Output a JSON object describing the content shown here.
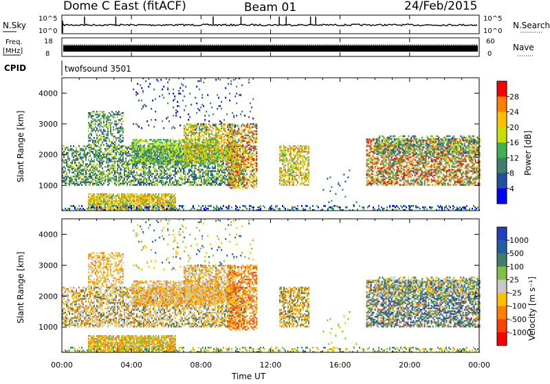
{
  "header": {
    "station": "Dome C East (fitACF)",
    "beam": "Beam 01",
    "date": "24/Feb/2015"
  },
  "strips": {
    "nsky_label": "N.Sky",
    "nsky_ticks": [
      "10^5",
      "10^0"
    ],
    "nsearch_label": "N.Search",
    "nsearch_ticks": [
      "10^5",
      "10^0"
    ],
    "freq_label": "Freq.",
    "freq_unit": "[MHz]",
    "freq_ticks": [
      "18",
      "8"
    ],
    "nave_label": "Nave",
    "nave_ticks": [
      "60",
      "0"
    ],
    "cpid_label": "CPID",
    "cpid_name": "twofsound 3501"
  },
  "chart_data": [
    {
      "type": "heatmap",
      "name": "power",
      "ylabel": "Slant Range [km]",
      "y_ticks": [
        "4000",
        "3000",
        "2000",
        "1000"
      ],
      "ylim": [
        180,
        4500
      ],
      "colorbar_label": "Power [dB]",
      "colorbar_ticks": [
        "28",
        "24",
        "20",
        "16",
        "12",
        "8",
        "4"
      ],
      "colorbar_colors": [
        "#ff0000",
        "#ff8000",
        "#ffc000",
        "#c8e000",
        "#40b050",
        "#40806a",
        "#2050a0",
        "#0000ff"
      ]
    },
    {
      "type": "heatmap",
      "name": "velocity",
      "ylabel": "Slant Range [km]",
      "y_ticks": [
        "4000",
        "3000",
        "2000",
        "1000"
      ],
      "ylim": [
        180,
        4500
      ],
      "colorbar_label": "Velocity [m s⁻¹]",
      "colorbar_ticks": [
        "1000",
        "500",
        "100",
        "25",
        "-25",
        "-100",
        "-500",
        "-1000"
      ],
      "colorbar_colors": [
        "#2040c0",
        "#2060a0",
        "#40806a",
        "#80c040",
        "#c8c8c8",
        "#ffc000",
        "#ff8000",
        "#ff4000",
        "#ff0000"
      ]
    }
  ],
  "x_axis": {
    "label": "Time UT",
    "ticks": [
      "00:00",
      "04:00",
      "08:00",
      "12:00",
      "16:00",
      "20:00",
      "00:00"
    ]
  }
}
